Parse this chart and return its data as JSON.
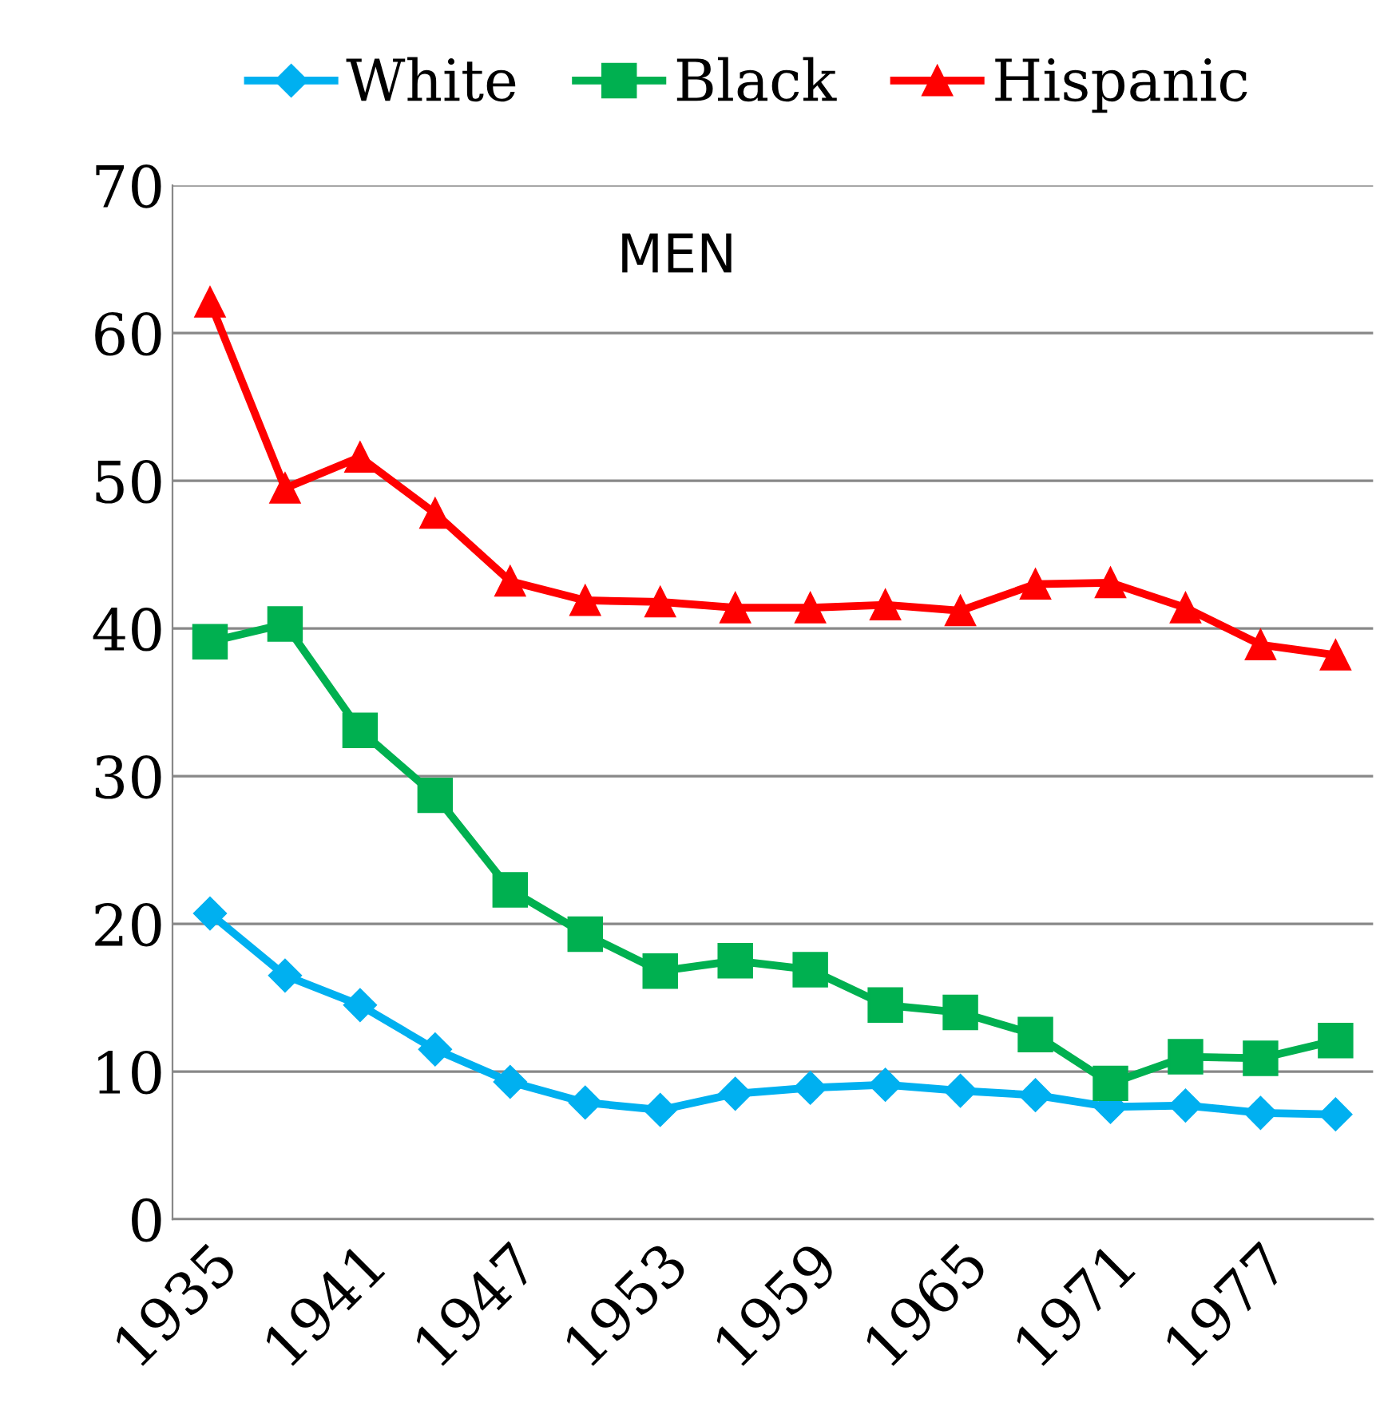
{
  "chart_data": {
    "type": "line",
    "categories": [
      "1935",
      null,
      "1941",
      null,
      "1947",
      null,
      "1953",
      null,
      "1959",
      null,
      "1965",
      null,
      "1971",
      null,
      "1977",
      null
    ],
    "series": [
      {
        "name": "White",
        "color": "#00b0f0",
        "marker": "diamond",
        "values": [
          20.7,
          16.5,
          14.5,
          11.5,
          9.3,
          7.9,
          7.4,
          8.5,
          8.9,
          9.1,
          8.7,
          8.4,
          7.6,
          7.7,
          7.2,
          7.1
        ]
      },
      {
        "name": "Black",
        "color": "#00b050",
        "marker": "square",
        "values": [
          39.1,
          40.3,
          33.1,
          28.7,
          22.3,
          19.3,
          16.8,
          17.5,
          16.9,
          14.5,
          14.0,
          12.5,
          9.2,
          11.0,
          10.9,
          12.1
        ]
      },
      {
        "name": "Hispanic",
        "color": "#ff0000",
        "marker": "triangle",
        "values": [
          62.1,
          49.5,
          51.6,
          47.8,
          43.2,
          41.9,
          41.8,
          41.4,
          41.4,
          41.6,
          41.2,
          43.0,
          43.1,
          41.4,
          38.9,
          38.2
        ]
      }
    ],
    "ylim": [
      0,
      70
    ],
    "yticks": [
      0,
      10,
      20,
      30,
      40,
      50,
      60,
      70
    ],
    "grid": "y",
    "legend": "top",
    "line_style": "solid",
    "annotations": [
      "MEN"
    ]
  }
}
